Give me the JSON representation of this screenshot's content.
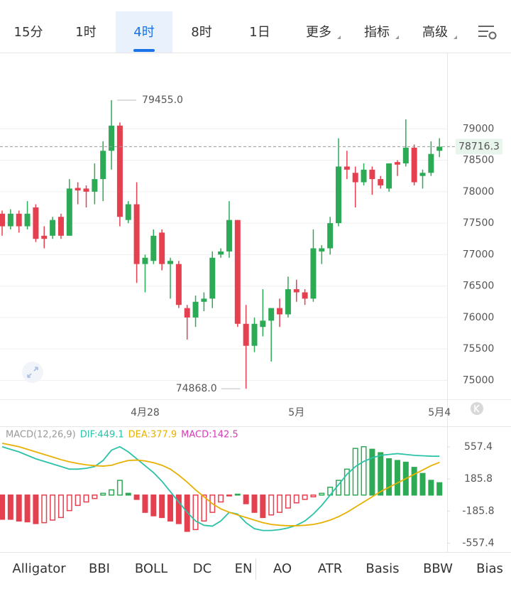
{
  "tabs": [
    {
      "label": "15分"
    },
    {
      "label": "1时"
    },
    {
      "label": "4时",
      "active": true
    },
    {
      "label": "8时"
    },
    {
      "label": "1日"
    },
    {
      "label": "更多",
      "dropdown": true
    },
    {
      "label": "指标",
      "dropdown": true
    },
    {
      "label": "高级",
      "dropdown": true
    }
  ],
  "indicators": [
    "Alligator",
    "BBI",
    "BOLL",
    "DC",
    "EN",
    "AO",
    "ATR",
    "Basis",
    "BBW",
    "Bias"
  ],
  "chart_data": [
    {
      "type": "candlestick",
      "categories": [
        null,
        null,
        null,
        null,
        null,
        null,
        null,
        null,
        null,
        null,
        null,
        null,
        null,
        null,
        null,
        null,
        null,
        "4月28",
        null,
        null,
        null,
        null,
        null,
        null,
        null,
        null,
        null,
        null,
        null,
        null,
        null,
        null,
        null,
        null,
        null,
        "5月",
        null,
        null,
        null,
        null,
        null,
        null,
        null,
        null,
        null,
        null,
        null,
        null,
        null,
        null,
        null,
        null,
        "5月4"
      ],
      "open": [
        77650,
        77450,
        77650,
        77450,
        77750,
        77300,
        77300,
        77600,
        77300,
        78060,
        78050,
        78000,
        78200,
        78650,
        79050,
        77550,
        77800,
        76850,
        76900,
        77350,
        76850,
        76850,
        76150,
        76000,
        76250,
        76300,
        77000,
        77050,
        77550,
        75900,
        75550,
        75850,
        75950,
        76150,
        76050,
        76450,
        76400,
        76300,
        77050,
        77100,
        77500,
        78400,
        78300,
        78150,
        78350,
        78200,
        78050,
        78470,
        78450,
        78700,
        78250,
        78300,
        78650
      ],
      "high": [
        77700,
        77720,
        77700,
        77850,
        77800,
        77450,
        77600,
        77650,
        78200,
        78150,
        78100,
        78450,
        78800,
        79455,
        79100,
        77850,
        78150,
        77000,
        77400,
        77400,
        76950,
        76900,
        76200,
        76350,
        76400,
        77050,
        77100,
        77850,
        77550,
        76200,
        76000,
        76450,
        76150,
        76300,
        76650,
        76600,
        76450,
        77400,
        77150,
        77600,
        78850,
        78650,
        78400,
        78450,
        78400,
        78250,
        78450,
        78500,
        79150,
        78750,
        78350,
        78800,
        78850
      ],
      "low": [
        77300,
        77400,
        77350,
        77400,
        77200,
        77100,
        77250,
        77250,
        77300,
        77800,
        77750,
        77800,
        77850,
        78350,
        77450,
        77500,
        76550,
        76400,
        76850,
        76750,
        76300,
        76150,
        75650,
        75850,
        76100,
        76150,
        76950,
        76950,
        75850,
        74868,
        75450,
        75700,
        75300,
        75850,
        76000,
        76250,
        76200,
        76250,
        76850,
        77000,
        77450,
        78200,
        77750,
        78100,
        77950,
        78050,
        78000,
        78250,
        78400,
        78100,
        78050,
        78250,
        78550
      ],
      "close": [
        77450,
        77650,
        77450,
        77650,
        77250,
        77250,
        77550,
        77300,
        78050,
        78020,
        78000,
        78200,
        78650,
        79050,
        77600,
        77800,
        76850,
        76950,
        77300,
        76850,
        76900,
        76200,
        76000,
        76250,
        76300,
        76950,
        77050,
        77550,
        75900,
        75550,
        75900,
        75950,
        76150,
        76050,
        76450,
        76400,
        76300,
        77100,
        77100,
        77500,
        78400,
        78350,
        78150,
        78350,
        78200,
        78100,
        78450,
        78430,
        78700,
        78150,
        78300,
        78600,
        78716.3
      ],
      "up_color": "#2daa55",
      "down_color": "#e5404f",
      "ylim": [
        74700,
        80200
      ],
      "yticks": [
        75000,
        75500,
        76000,
        76500,
        77000,
        77500,
        78000,
        78500,
        79000
      ],
      "grid": true,
      "last_price": 78716.3,
      "annotations": [
        {
          "label": "79455.0",
          "value": 79455
        },
        {
          "label": "74868.0",
          "value": 74868
        }
      ]
    },
    {
      "type": "macd",
      "title": "MACD(12,26,9)",
      "histogram": {
        "label": "MACD:142.5",
        "color": "#d63bb5",
        "up_color": "#2daa55",
        "down_color": "#e5404f",
        "values": [
          -280,
          -280,
          -300,
          -310,
          -330,
          -320,
          -290,
          -260,
          -180,
          -120,
          -80,
          -40,
          20,
          60,
          170,
          20,
          -50,
          -200,
          -240,
          -260,
          -300,
          -330,
          -420,
          -400,
          -300,
          -200,
          -80,
          -10,
          10,
          -100,
          -200,
          -260,
          -230,
          -200,
          -150,
          -90,
          -50,
          -20,
          20,
          90,
          170,
          300,
          540,
          560,
          530,
          490,
          420,
          400,
          380,
          320,
          250,
          170,
          142.5
        ]
      },
      "series": [
        {
          "label": "DIF:449.1",
          "color": "#2bc2a8",
          "values": [
            560,
            530,
            500,
            460,
            420,
            390,
            360,
            330,
            300,
            300,
            310,
            330,
            400,
            520,
            560,
            500,
            420,
            340,
            260,
            160,
            40,
            -80,
            -200,
            -300,
            -350,
            -360,
            -300,
            -200,
            -220,
            -320,
            -390,
            -410,
            -410,
            -400,
            -380,
            -350,
            -300,
            -220,
            -120,
            0,
            120,
            240,
            330,
            390,
            430,
            460,
            470,
            480,
            470,
            460,
            455,
            450,
            449.1
          ]
        },
        {
          "label": "DEA:377.9",
          "color": "#e8b000",
          "values": [
            600,
            580,
            560,
            530,
            500,
            470,
            440,
            410,
            385,
            365,
            350,
            340,
            335,
            345,
            375,
            400,
            405,
            395,
            375,
            345,
            300,
            230,
            150,
            60,
            -20,
            -100,
            -160,
            -200,
            -230,
            -260,
            -290,
            -320,
            -340,
            -350,
            -355,
            -355,
            -350,
            -340,
            -320,
            -290,
            -250,
            -200,
            -140,
            -80,
            -20,
            40,
            90,
            140,
            190,
            240,
            290,
            340,
            377.9
          ]
        }
      ],
      "ylim": [
        -660,
        755
      ],
      "yticks": [
        557.4,
        185.8,
        -185.8,
        -557.4
      ]
    }
  ]
}
